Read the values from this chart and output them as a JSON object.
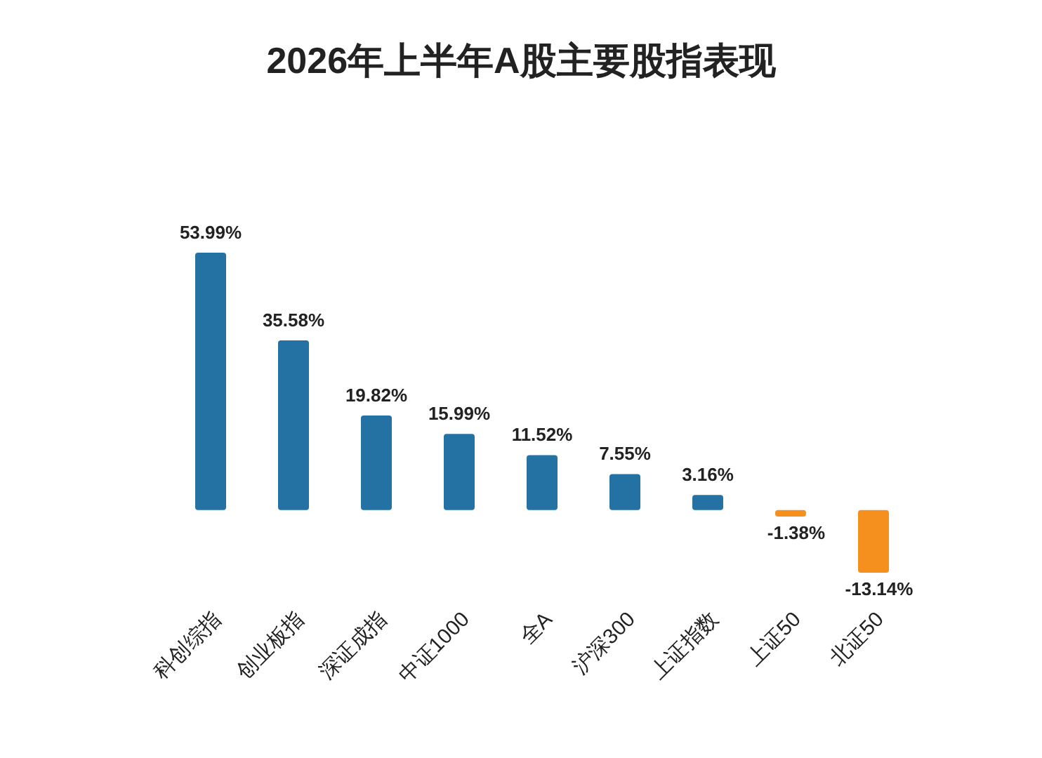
{
  "chart_data": {
    "type": "bar",
    "title": "2026年上半年A股主要股指表现",
    "categories": [
      "科创综指",
      "创业板指",
      "深证成指",
      "中证1000",
      "全A",
      "沪深300",
      "上证指数",
      "上证50",
      "北证50"
    ],
    "values": [
      53.99,
      35.58,
      19.82,
      15.99,
      11.52,
      7.55,
      3.16,
      -1.38,
      -13.14
    ],
    "value_labels": [
      "53.99%",
      "35.58%",
      "19.82%",
      "15.99%",
      "11.52%",
      "7.55%",
      "3.16%",
      "-1.38%",
      "-13.14%"
    ],
    "colors": [
      "#2472a4",
      "#2472a4",
      "#2472a4",
      "#2472a4",
      "#2472a4",
      "#2472a4",
      "#2472a4",
      "#f5901e",
      "#f5901e"
    ],
    "data_labels": true
  }
}
